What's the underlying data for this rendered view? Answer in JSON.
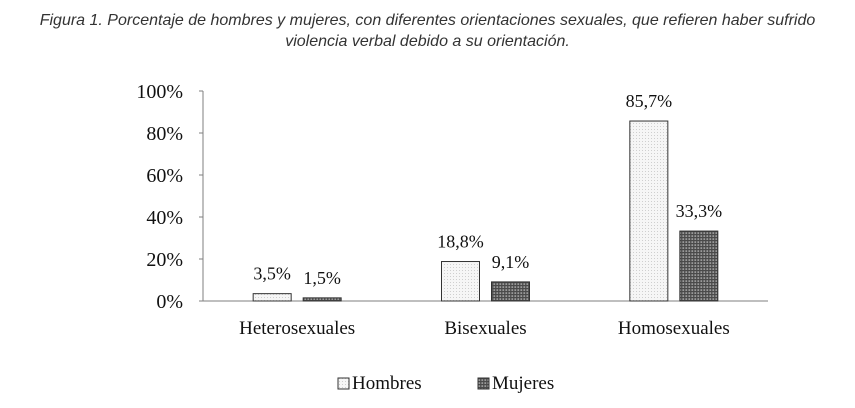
{
  "caption": {
    "line1": "Figura 1. Porcentaje de hombres y mujeres, con diferentes orientaciones sexuales, que refieren haber sufrido",
    "line2": "violencia verbal debido a su orientación."
  },
  "chart_data": {
    "type": "bar",
    "title": "",
    "xlabel": "",
    "ylabel": "",
    "categories": [
      "Heterosexuales",
      "Bisexuales",
      "Homosexuales"
    ],
    "series": [
      {
        "name": "Hombres",
        "values": [
          3.5,
          18.8,
          85.7
        ],
        "labels": [
          "3,5%",
          "18,8%",
          "85,7%"
        ],
        "color": "#f2f2f2"
      },
      {
        "name": "Mujeres",
        "values": [
          1.5,
          9.1,
          33.3
        ],
        "labels": [
          "1,5%",
          "9,1%",
          "33,3%"
        ],
        "color": "#6e6e6e"
      }
    ],
    "ylim": [
      0,
      100
    ],
    "yticks": [
      0,
      20,
      40,
      60,
      80,
      100
    ],
    "ytick_labels": [
      "0%",
      "20%",
      "40%",
      "60%",
      "80%",
      "100%"
    ],
    "grid": false,
    "legend_position": "bottom"
  }
}
